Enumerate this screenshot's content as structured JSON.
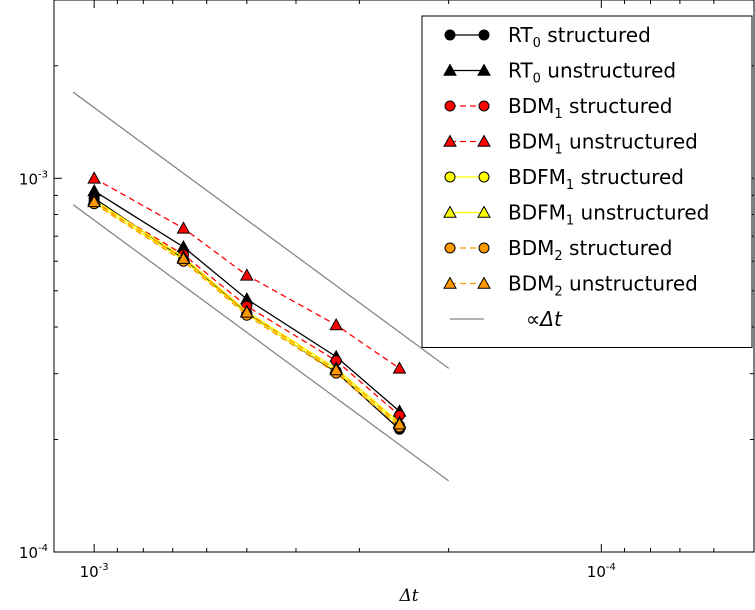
{
  "chart_data": {
    "type": "line",
    "title": "",
    "xlabel": "Δt",
    "ylabel": "",
    "x_scale": "log",
    "y_scale": "log",
    "x_reversed": true,
    "xlim": [
      0.0012,
      5e-05
    ],
    "ylim": [
      0.0001,
      0.003
    ],
    "x_ticks": [
      {
        "value": 0.001,
        "mantissa": "10",
        "exponent": "-3"
      },
      {
        "value": 0.0001,
        "mantissa": "10",
        "exponent": "-4"
      }
    ],
    "y_ticks": [
      {
        "value": 0.001,
        "mantissa": "10",
        "exponent": "-3"
      },
      {
        "value": 0.0001,
        "mantissa": "10",
        "exponent": "-4"
      }
    ],
    "grid": false,
    "legend_position": "top-right",
    "x": [
      0.001,
      0.0006667,
      0.0005,
      0.0003333,
      0.00025
    ],
    "series": [
      {
        "name": "RT",
        "sub": "0",
        "suffix": " structured",
        "values": [
          0.000885,
          0.000609,
          0.000435,
          0.000303,
          0.000213
        ],
        "color": "#000000",
        "marker": "circle",
        "dashed": false
      },
      {
        "name": "RT",
        "sub": "0",
        "suffix": " unstructured",
        "values": [
          0.000925,
          0.000655,
          0.000475,
          0.000333,
          0.000238
        ],
        "color": "#000000",
        "marker": "triangle",
        "dashed": false
      },
      {
        "name": "BDM",
        "sub": "1",
        "suffix": " structured",
        "values": [
          0.00087,
          0.000625,
          0.000455,
          0.000325,
          0.000232
        ],
        "color": "#ff0000",
        "marker": "circle",
        "dashed": true
      },
      {
        "name": "BDM",
        "sub": "1",
        "suffix": " unstructured",
        "values": [
          0.001,
          0.000735,
          0.00055,
          0.000405,
          0.00031
        ],
        "color": "#ff0000",
        "marker": "triangle",
        "dashed": true
      },
      {
        "name": "BDFM",
        "sub": "1",
        "suffix": " structured",
        "values": [
          0.00086,
          0.000605,
          0.000433,
          0.000305,
          0.000218
        ],
        "color": "#ffff00",
        "marker": "circle",
        "dashed": false
      },
      {
        "name": "BDFM",
        "sub": "1",
        "suffix": " unstructured",
        "values": [
          0.000875,
          0.000615,
          0.00044,
          0.00031,
          0.000222
        ],
        "color": "#ffff00",
        "marker": "triangle",
        "dashed": false
      },
      {
        "name": "BDM",
        "sub": "2",
        "suffix": " structured",
        "values": [
          0.000855,
          0.0006,
          0.00043,
          0.000301,
          0.000216
        ],
        "color": "#ff9900",
        "marker": "circle",
        "dashed": true
      },
      {
        "name": "BDM",
        "sub": "2",
        "suffix": " unstructured",
        "values": [
          0.000865,
          0.00061,
          0.000438,
          0.000307,
          0.00022
        ],
        "color": "#ff9900",
        "marker": "triangle",
        "dashed": true
      }
    ],
    "reference_lines": [
      {
        "x": [
          0.0011,
          0.0002
        ],
        "y": [
          0.0017,
          0.00031
        ],
        "color": "#888888"
      },
      {
        "x": [
          0.0011,
          0.0002
        ],
        "y": [
          0.00085,
          0.000155
        ],
        "color": "#888888"
      }
    ],
    "reference_label": "∝Δt"
  }
}
